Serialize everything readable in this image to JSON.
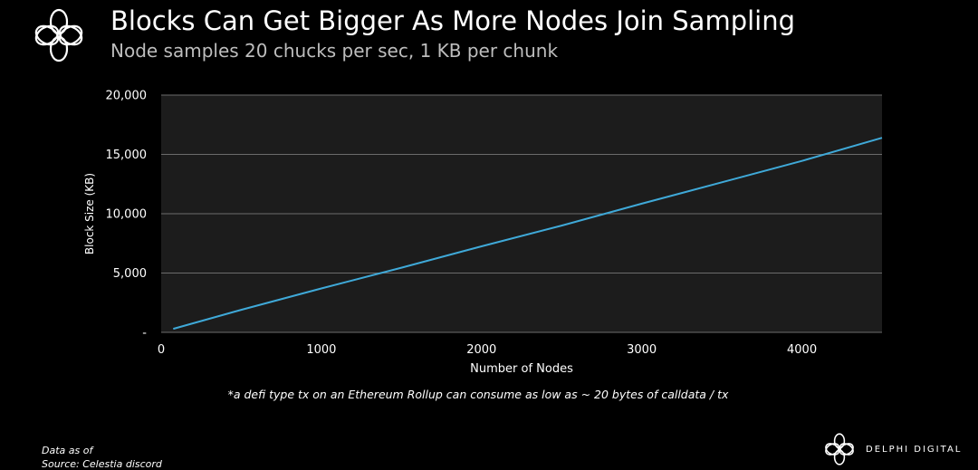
{
  "header": {
    "title": "Blocks Can Get Bigger As More Nodes Join Sampling",
    "subtitle": "Node samples 20 chucks per sec, 1 KB per chunk",
    "logo_icon": "delphi-flower-logo-icon"
  },
  "chart_data": {
    "type": "line",
    "title": "Blocks Can Get Bigger As More Nodes Join Sampling",
    "subtitle": "Node samples 20 chucks per sec, 1 KB per chunk",
    "xlabel": "Number of Nodes",
    "ylabel": "Block Size (KB)",
    "xlim": [
      0,
      4500
    ],
    "ylim": [
      0,
      20000
    ],
    "x_ticks": [
      {
        "value": 0,
        "label": "0"
      },
      {
        "value": 1000,
        "label": "1000"
      },
      {
        "value": 2000,
        "label": "2000"
      },
      {
        "value": 3000,
        "label": "3000"
      },
      {
        "value": 4000,
        "label": "4000"
      }
    ],
    "y_ticks": [
      {
        "value": 0,
        "label": "-"
      },
      {
        "value": 5000,
        "label": "5,000"
      },
      {
        "value": 10000,
        "label": "10,000"
      },
      {
        "value": 15000,
        "label": "15,000"
      },
      {
        "value": 20000,
        "label": "20,000"
      }
    ],
    "grid": "horizontal",
    "legend": "none",
    "series": [
      {
        "x": [
          75,
          500,
          1000,
          1500,
          2000,
          2500,
          3000,
          3500,
          4000,
          4500
        ],
        "values": [
          300,
          1900,
          3700,
          5450,
          7250,
          9000,
          10850,
          12650,
          14450,
          16400
        ],
        "color": "#3fa9d8"
      }
    ],
    "colors": {
      "plot_background": "#1c1c1c",
      "gridline": "#6b6b6b",
      "line": "#3fa9d8",
      "tick_text": "#ffffff"
    }
  },
  "footer": {
    "footnote": "*a defi type tx on an Ethereum Rollup can consume as low as ~ 20 bytes of calldata / tx",
    "data_as_of": "Data as of",
    "source": "Source: Celestia discord",
    "brand_name": "DELPHI DIGITAL",
    "brand_icon": "delphi-flower-logo-icon"
  }
}
